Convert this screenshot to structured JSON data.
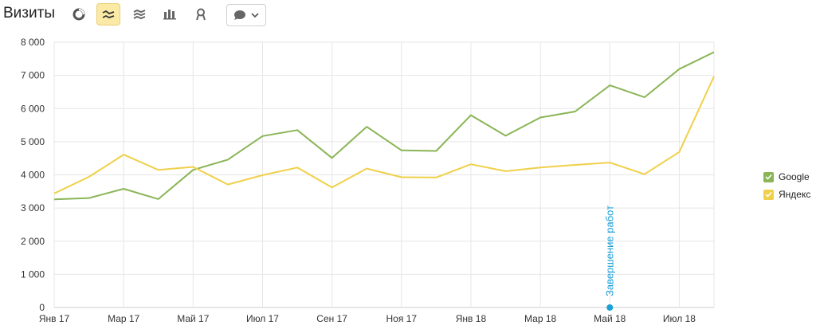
{
  "toolbar": {
    "title": "Визиты",
    "buttons": [
      {
        "icon": "pie-chart-icon",
        "active": false
      },
      {
        "icon": "line-chart-icon",
        "active": true
      },
      {
        "icon": "area-chart-icon",
        "active": false
      },
      {
        "icon": "bar-chart-icon",
        "active": false
      },
      {
        "icon": "map-pin-icon",
        "active": false
      }
    ],
    "comment_button_icon": "speech-bubble-icon"
  },
  "colors": {
    "google": "#8ab556",
    "yandex": "#f0d04a",
    "annotation": "#1a9fd9",
    "grid": "#e6e6e6",
    "active_button": "#fbe9a6"
  },
  "chart_data": {
    "type": "line",
    "x": [
      "2017-01",
      "2017-02",
      "2017-03",
      "2017-04",
      "2017-05",
      "2017-06",
      "2017-07",
      "2017-08",
      "2017-09",
      "2017-10",
      "2017-11",
      "2017-12",
      "2018-01",
      "2018-02",
      "2018-03",
      "2018-04",
      "2018-05",
      "2018-06",
      "2018-07",
      "2018-08"
    ],
    "x_tick_labels": [
      "Янв 17",
      "Мар 17",
      "Май 17",
      "Июл 17",
      "Сен 17",
      "Ноя 17",
      "Янв 18",
      "Мар 18",
      "Май 18",
      "Июл 18"
    ],
    "x_tick_index": [
      0,
      2,
      4,
      6,
      8,
      10,
      12,
      14,
      16,
      18
    ],
    "series": [
      {
        "name": "Google",
        "color": "#8ab556",
        "values": [
          3260,
          3300,
          3580,
          3270,
          4150,
          4460,
          5170,
          5350,
          4510,
          5450,
          4740,
          4720,
          5800,
          5180,
          5730,
          5910,
          6700,
          6340,
          7190,
          7700
        ]
      },
      {
        "name": "Яндекс",
        "color": "#f0d04a",
        "values": [
          3440,
          3940,
          4610,
          4150,
          4240,
          3710,
          3990,
          4220,
          3620,
          4190,
          3930,
          3920,
          4320,
          4110,
          4220,
          4300,
          4370,
          4020,
          4690,
          6970
        ]
      }
    ],
    "ylim": [
      0,
      8000
    ],
    "y_ticks": [
      0,
      1000,
      2000,
      3000,
      4000,
      5000,
      6000,
      7000,
      8000
    ],
    "y_tick_labels": [
      "0",
      "1 000",
      "2 000",
      "3 000",
      "4 000",
      "5 000",
      "6 000",
      "7 000",
      "8 000"
    ],
    "annotations": [
      {
        "x_index": 16,
        "text": "Завершение работ"
      }
    ],
    "legend_position": "right",
    "grid": true
  }
}
